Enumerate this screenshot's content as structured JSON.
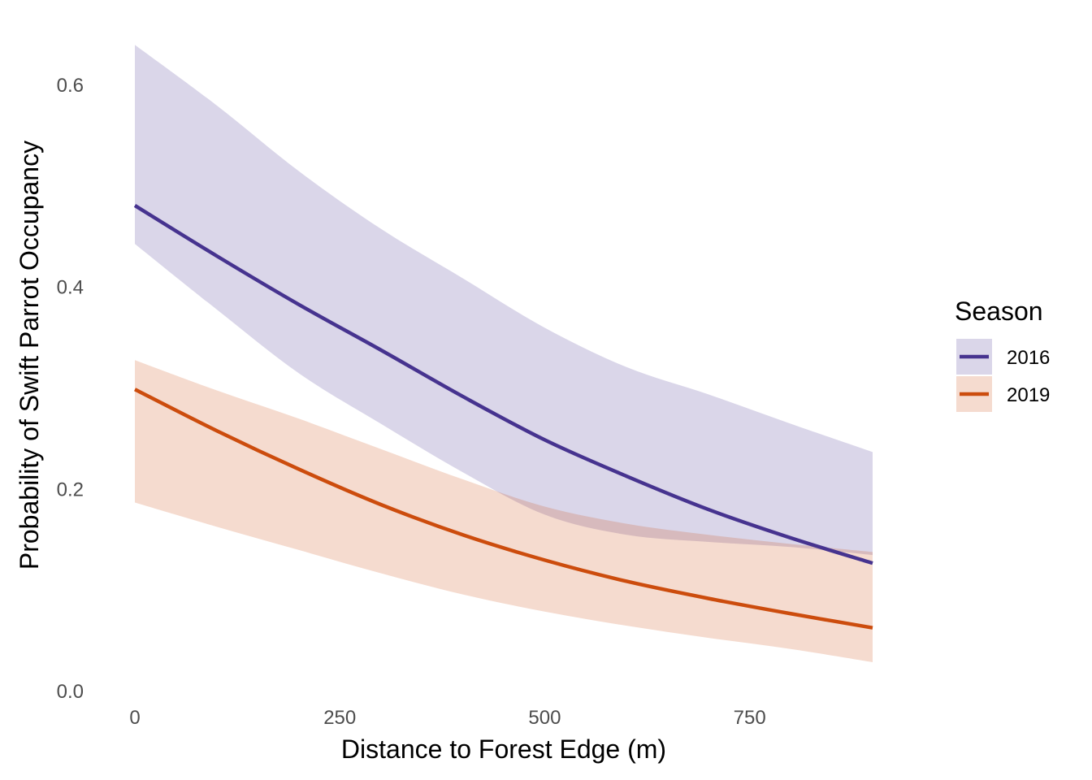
{
  "chart_data": {
    "type": "line",
    "xlabel": "Distance to Forest Edge (m)",
    "ylabel": "Probability of Swift Parrot Occupancy",
    "xlim": [
      -10,
      910
    ],
    "ylim": [
      0,
      0.65
    ],
    "x_ticks": [
      0,
      250,
      500,
      750
    ],
    "x_tick_labels": [
      "0",
      "250",
      "500",
      "750"
    ],
    "y_ticks": [
      0.0,
      0.2,
      0.4,
      0.6
    ],
    "y_tick_labels": [
      "0.0",
      "0.2",
      "0.4",
      "0.6"
    ],
    "grid": false,
    "legend": {
      "title": "Season",
      "position": "right"
    },
    "x": [
      0,
      100,
      200,
      300,
      400,
      500,
      600,
      700,
      800,
      900
    ],
    "series": [
      {
        "name": "2016",
        "color": "#46338f",
        "ribbon_color": "#dad7e8",
        "values": [
          0.481,
          0.431,
          0.383,
          0.338,
          0.292,
          0.249,
          0.213,
          0.18,
          0.152,
          0.127
        ],
        "lower": [
          0.443,
          0.378,
          0.315,
          0.265,
          0.217,
          0.175,
          0.155,
          0.148,
          0.143,
          0.135
        ],
        "upper": [
          0.64,
          0.58,
          0.515,
          0.458,
          0.409,
          0.36,
          0.321,
          0.294,
          0.265,
          0.237
        ]
      },
      {
        "name": "2019",
        "color": "#cc4c0d",
        "ribbon_color": "#f5d9cd",
        "values": [
          0.299,
          0.258,
          0.22,
          0.185,
          0.155,
          0.13,
          0.109,
          0.092,
          0.077,
          0.063
        ],
        "lower": [
          0.187,
          0.163,
          0.14,
          0.117,
          0.096,
          0.079,
          0.065,
          0.053,
          0.042,
          0.029
        ],
        "upper": [
          0.328,
          0.298,
          0.27,
          0.24,
          0.21,
          0.183,
          0.166,
          0.155,
          0.146,
          0.138
        ]
      }
    ]
  }
}
